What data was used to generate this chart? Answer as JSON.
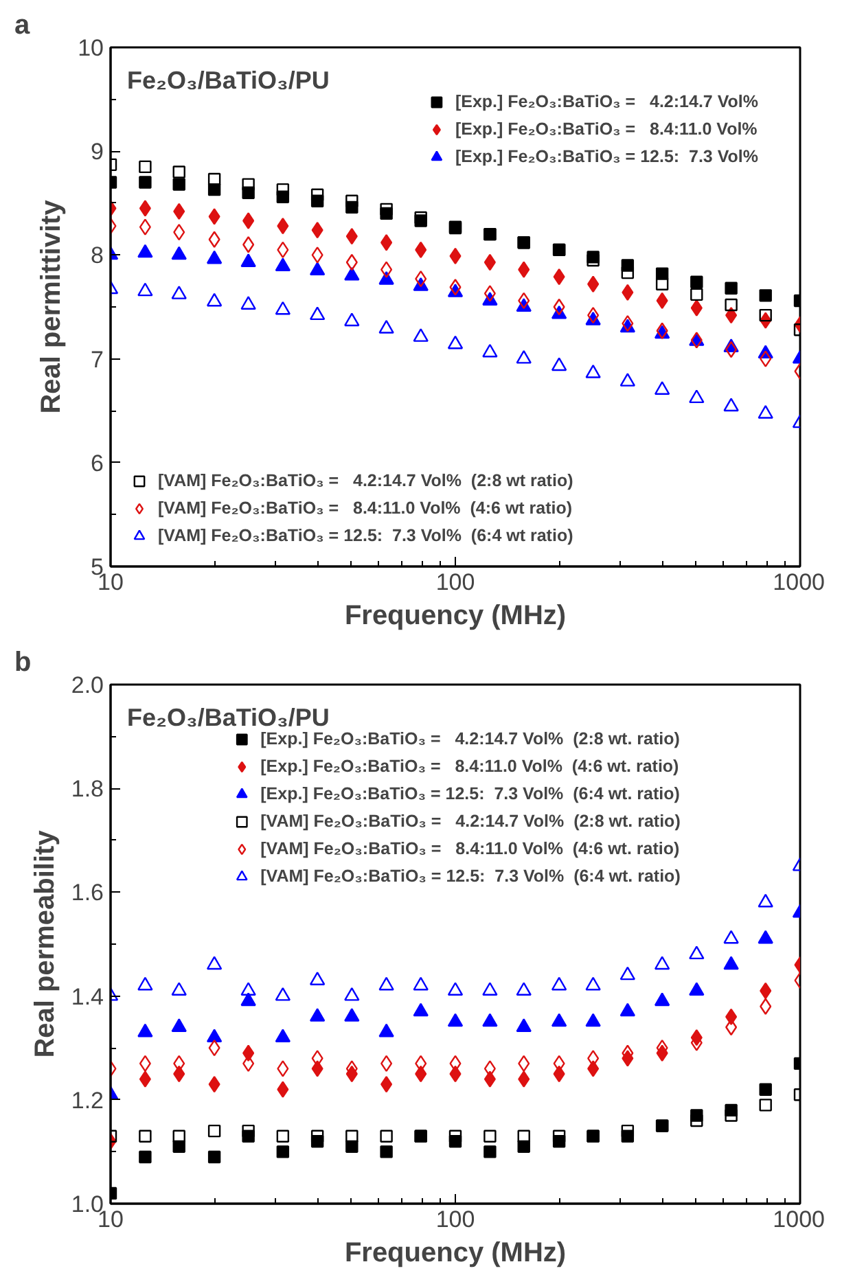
{
  "chart_data": [
    {
      "type": "scatter",
      "title": "a",
      "subtitle": "Fe₂O₃/BaTiO₃/PU",
      "xlabel": "Frequency (MHz)",
      "ylabel": "Real permittivity",
      "log": "x",
      "xlim": [
        10,
        1000
      ],
      "xticks": [
        10,
        100,
        1000
      ],
      "ylim": [
        5,
        10
      ],
      "yticks": [
        5,
        6,
        7,
        8,
        9,
        10
      ],
      "grid": false,
      "legend": [
        "top right",
        "bottom left"
      ],
      "x": [
        10,
        12.6,
        15.8,
        20,
        25.1,
        31.6,
        39.8,
        50.1,
        63.1,
        79.4,
        100,
        126,
        158,
        200,
        251,
        316,
        398,
        501,
        631,
        794,
        1000
      ],
      "series": [
        {
          "name": "[Exp.] Fe₂O₃:BaTiO₃ =   4.2:14.7 Vol%",
          "color": "#000000",
          "marker": "square",
          "values": [
            8.7,
            8.7,
            8.68,
            8.63,
            8.6,
            8.56,
            8.52,
            8.46,
            8.4,
            8.33,
            8.26,
            8.2,
            8.12,
            8.05,
            7.98,
            7.9,
            7.82,
            7.74,
            7.68,
            7.61,
            7.56
          ]
        },
        {
          "name": "[Exp.] Fe₂O₃:BaTiO₃ =   8.4:11.0 Vol%",
          "color": "#dd1111",
          "marker": "diamond",
          "values": [
            8.45,
            8.45,
            8.42,
            8.37,
            8.33,
            8.28,
            8.24,
            8.18,
            8.12,
            8.05,
            7.99,
            7.93,
            7.86,
            7.79,
            7.72,
            7.64,
            7.56,
            7.49,
            7.42,
            7.37,
            7.33
          ]
        },
        {
          "name": "[Exp.] Fe₂O₃:BaTiO₃ = 12.5:  7.3 Vol%",
          "color": "#0000ff",
          "marker": "triangle",
          "values": [
            8.0,
            8.02,
            8.0,
            7.96,
            7.93,
            7.89,
            7.85,
            7.8,
            7.76,
            7.7,
            7.64,
            7.56,
            7.5,
            7.43,
            7.37,
            7.3,
            7.24,
            7.17,
            7.11,
            7.05,
            7.0
          ]
        },
        {
          "name": "[VAM] Fe₂O₃:BaTiO₃ =   4.2:14.7 Vol%  (2:8 wt ratio)",
          "color": "#000000",
          "marker": "square_open",
          "values": [
            8.87,
            8.85,
            8.8,
            8.73,
            8.68,
            8.63,
            8.58,
            8.52,
            8.44,
            8.36,
            8.27,
            8.2,
            8.12,
            8.05,
            7.95,
            7.83,
            7.72,
            7.62,
            7.52,
            7.42,
            7.28
          ]
        },
        {
          "name": "[VAM] Fe₂O₃:BaTiO₃ =   8.4:11.0 Vol%  (4:6 wt ratio)",
          "color": "#dd1111",
          "marker": "diamond_open",
          "values": [
            8.28,
            8.27,
            8.22,
            8.15,
            8.1,
            8.05,
            8.0,
            7.93,
            7.86,
            7.77,
            7.69,
            7.63,
            7.56,
            7.5,
            7.42,
            7.34,
            7.27,
            7.18,
            7.09,
            7.0,
            6.88
          ]
        },
        {
          "name": "[VAM] Fe₂O₃:BaTiO₃ = 12.5:  7.3 Vol%  (6:4 wt ratio)",
          "color": "#0000ff",
          "marker": "triangle_open",
          "values": [
            7.67,
            7.65,
            7.62,
            7.55,
            7.52,
            7.47,
            7.42,
            7.36,
            7.29,
            7.21,
            7.14,
            7.06,
            7.0,
            6.93,
            6.86,
            6.78,
            6.7,
            6.62,
            6.54,
            6.47,
            6.38
          ]
        }
      ]
    },
    {
      "type": "scatter",
      "title": "b",
      "subtitle": "Fe₂O₃/BaTiO₃/PU",
      "xlabel": "Frequency (MHz)",
      "ylabel": "Real permeability",
      "log": "x",
      "xlim": [
        10,
        1000
      ],
      "xticks": [
        10,
        100,
        1000
      ],
      "ylim": [
        1.0,
        2.0
      ],
      "yticks": [
        {
          "value": 1.0,
          "label": "1.0"
        },
        {
          "value": 1.2,
          "label": "1.2"
        },
        {
          "value": 1.4,
          "label": "1.4"
        },
        {
          "value": 1.6,
          "label": "1.6"
        },
        {
          "value": 1.8,
          "label": "1.8"
        },
        {
          "value": 2.0,
          "label": "2.0"
        }
      ],
      "grid": false,
      "legend": "top",
      "x": [
        10,
        12.6,
        15.8,
        20,
        25.1,
        31.6,
        39.8,
        50.1,
        63.1,
        79.4,
        100,
        126,
        158,
        200,
        251,
        316,
        398,
        501,
        631,
        794,
        1000
      ],
      "series": [
        {
          "name": "[Exp.] Fe₂O₃:BaTiO₃ =   4.2:14.7 Vol%  (2:8 wt. ratio)",
          "color": "#000000",
          "marker": "square",
          "values": [
            1.02,
            1.09,
            1.11,
            1.09,
            1.13,
            1.1,
            1.12,
            1.11,
            1.1,
            1.13,
            1.12,
            1.1,
            1.11,
            1.12,
            1.13,
            1.13,
            1.15,
            1.17,
            1.18,
            1.22,
            1.27
          ]
        },
        {
          "name": "[Exp.] Fe₂O₃:BaTiO₃ =   8.4:11.0 Vol%  (4:6 wt. ratio)",
          "color": "#dd1111",
          "marker": "diamond",
          "values": [
            1.12,
            1.24,
            1.25,
            1.23,
            1.29,
            1.22,
            1.26,
            1.25,
            1.23,
            1.25,
            1.25,
            1.24,
            1.24,
            1.25,
            1.26,
            1.28,
            1.29,
            1.32,
            1.36,
            1.41,
            1.46
          ]
        },
        {
          "name": "[Exp.] Fe₂O₃:BaTiO₃ = 12.5:  7.3 Vol%  (6:4 wt. ratio)",
          "color": "#0000ff",
          "marker": "triangle",
          "values": [
            1.21,
            1.33,
            1.34,
            1.32,
            1.39,
            1.32,
            1.36,
            1.36,
            1.33,
            1.37,
            1.35,
            1.35,
            1.34,
            1.35,
            1.35,
            1.37,
            1.39,
            1.41,
            1.46,
            1.51,
            1.56
          ]
        },
        {
          "name": "[VAM] Fe₂O₃:BaTiO₃ =   4.2:14.7 Vol%  (2:8 wt. ratio)",
          "color": "#000000",
          "marker": "square_open",
          "values": [
            1.13,
            1.13,
            1.13,
            1.14,
            1.14,
            1.13,
            1.13,
            1.13,
            1.13,
            1.13,
            1.13,
            1.13,
            1.13,
            1.13,
            1.13,
            1.14,
            1.15,
            1.16,
            1.17,
            1.19,
            1.21
          ]
        },
        {
          "name": "[VAM] Fe₂O₃:BaTiO₃ =   8.4:11.0 Vol%  (4:6 wt. ratio)",
          "color": "#dd1111",
          "marker": "diamond_open",
          "values": [
            1.26,
            1.27,
            1.27,
            1.3,
            1.27,
            1.26,
            1.28,
            1.26,
            1.27,
            1.27,
            1.27,
            1.26,
            1.27,
            1.27,
            1.28,
            1.29,
            1.3,
            1.31,
            1.34,
            1.38,
            1.43
          ]
        },
        {
          "name": "[VAM] Fe₂O₃:BaTiO₃ = 12.5:  7.3 Vol%  (6:4 wt. ratio)",
          "color": "#0000ff",
          "marker": "triangle_open",
          "values": [
            1.4,
            1.42,
            1.41,
            1.46,
            1.41,
            1.4,
            1.43,
            1.4,
            1.42,
            1.42,
            1.41,
            1.41,
            1.41,
            1.42,
            1.42,
            1.44,
            1.46,
            1.48,
            1.51,
            1.58,
            1.65
          ]
        }
      ]
    }
  ]
}
